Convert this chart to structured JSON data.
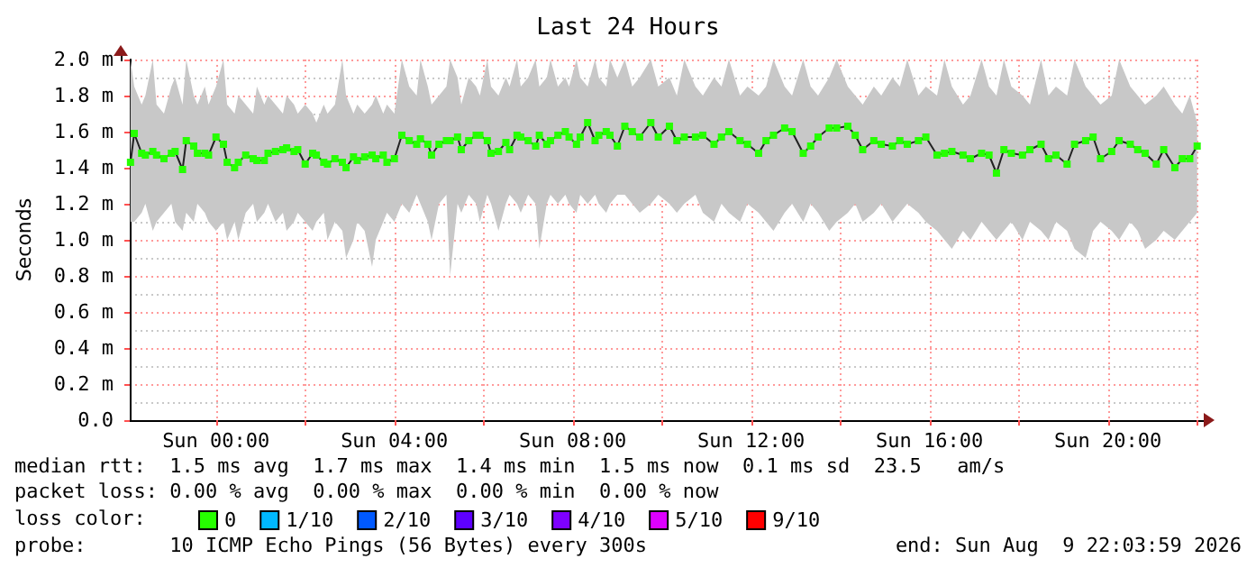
{
  "chart_data": {
    "type": "line",
    "title": "Last 24 Hours",
    "ylabel": "Seconds",
    "legend_title": "loss color:",
    "legend": "bottom left",
    "grid": true,
    "marker": "square",
    "line_style": "solid",
    "xlim": [
      "2026-08-08T22:04",
      "2026-08-09T22:04"
    ],
    "xticks": [
      {
        "value": "2026-08-09T00:00",
        "label": "Sun 00:00"
      },
      {
        "value": "2026-08-09T02:00",
        "label": null
      },
      {
        "value": "2026-08-09T04:00",
        "label": "Sun 04:00"
      },
      {
        "value": "2026-08-09T06:00",
        "label": null
      },
      {
        "value": "2026-08-09T08:00",
        "label": "Sun 08:00"
      },
      {
        "value": "2026-08-09T10:00",
        "label": null
      },
      {
        "value": "2026-08-09T12:00",
        "label": "Sun 12:00"
      },
      {
        "value": "2026-08-09T14:00",
        "label": null
      },
      {
        "value": "2026-08-09T16:00",
        "label": "Sun 16:00"
      },
      {
        "value": "2026-08-09T18:00",
        "label": null
      },
      {
        "value": "2026-08-09T20:00",
        "label": "Sun 20:00"
      },
      {
        "value": "2026-08-09T22:00",
        "label": null
      }
    ],
    "ylim": [
      0,
      2
    ],
    "yticks": [
      {
        "value": 0,
        "label": "0.0"
      },
      {
        "value": 0.2,
        "label": "0.2 m"
      },
      {
        "value": 0.4,
        "label": "0.4 m"
      },
      {
        "value": 0.6,
        "label": "0.6 m"
      },
      {
        "value": 0.8,
        "label": "0.8 m"
      },
      {
        "value": 1,
        "label": "1.0 m"
      },
      {
        "value": 1.2,
        "label": "1.2 m"
      },
      {
        "value": 1.4,
        "label": "1.4 m"
      },
      {
        "value": 1.6,
        "label": "1.6 m"
      },
      {
        "value": 1.8,
        "label": "1.8 m"
      },
      {
        "value": 2,
        "label": "2.0 m"
      }
    ],
    "annotations": [
      "median rtt:  1.5 ms avg  1.7 ms max  1.4 ms min  1.5 ms now  0.1 ms sd  23.5   am/s",
      "packet loss: 0.00 % avg  0.00 % max  0.00 % min  0.00 % now",
      "probe:       10 ICMP Echo Pings (56 Bytes) every 300s",
      "end: Sun Aug  9 22:03:59 2026"
    ],
    "series": [
      {
        "name": "0",
        "color": "#26ff00",
        "x": [
          "2026-08-08T22:05",
          "2026-08-08T22:10",
          "2026-08-08T22:20",
          "2026-08-08T22:25",
          "2026-08-08T22:35",
          "2026-08-08T22:40",
          "2026-08-08T22:50",
          "2026-08-08T23:00",
          "2026-08-08T23:05",
          "2026-08-08T23:15",
          "2026-08-08T23:20",
          "2026-08-08T23:30",
          "2026-08-08T23:35",
          "2026-08-08T23:45",
          "2026-08-08T23:50",
          "2026-08-09T00:00",
          "2026-08-09T00:10",
          "2026-08-09T00:15",
          "2026-08-09T00:25",
          "2026-08-09T00:30",
          "2026-08-09T00:40",
          "2026-08-09T00:50",
          "2026-08-09T00:55",
          "2026-08-09T01:05",
          "2026-08-09T01:10",
          "2026-08-09T01:20",
          "2026-08-09T01:30",
          "2026-08-09T01:35",
          "2026-08-09T01:45",
          "2026-08-09T01:50",
          "2026-08-09T02:00",
          "2026-08-09T02:10",
          "2026-08-09T02:15",
          "2026-08-09T02:25",
          "2026-08-09T02:30",
          "2026-08-09T02:40",
          "2026-08-09T02:50",
          "2026-08-09T02:55",
          "2026-08-09T03:05",
          "2026-08-09T03:10",
          "2026-08-09T03:20",
          "2026-08-09T03:30",
          "2026-08-09T03:35",
          "2026-08-09T03:45",
          "2026-08-09T03:50",
          "2026-08-09T04:00",
          "2026-08-09T04:10",
          "2026-08-09T04:20",
          "2026-08-09T04:30",
          "2026-08-09T04:35",
          "2026-08-09T04:45",
          "2026-08-09T04:50",
          "2026-08-09T05:00",
          "2026-08-09T05:10",
          "2026-08-09T05:15",
          "2026-08-09T05:25",
          "2026-08-09T05:30",
          "2026-08-09T05:40",
          "2026-08-09T05:50",
          "2026-08-09T05:55",
          "2026-08-09T06:05",
          "2026-08-09T06:10",
          "2026-08-09T06:20",
          "2026-08-09T06:30",
          "2026-08-09T06:35",
          "2026-08-09T06:45",
          "2026-08-09T06:50",
          "2026-08-09T07:00",
          "2026-08-09T07:10",
          "2026-08-09T07:15",
          "2026-08-09T07:25",
          "2026-08-09T07:30",
          "2026-08-09T07:40",
          "2026-08-09T07:50",
          "2026-08-09T07:55",
          "2026-08-09T08:05",
          "2026-08-09T08:10",
          "2026-08-09T08:20",
          "2026-08-09T08:30",
          "2026-08-09T08:35",
          "2026-08-09T08:45",
          "2026-08-09T08:50",
          "2026-08-09T09:00",
          "2026-08-09T09:10",
          "2026-08-09T09:20",
          "2026-08-09T09:30",
          "2026-08-09T09:45",
          "2026-08-09T09:55",
          "2026-08-09T10:10",
          "2026-08-09T10:20",
          "2026-08-09T10:30",
          "2026-08-09T10:45",
          "2026-08-09T10:55",
          "2026-08-09T11:10",
          "2026-08-09T11:20",
          "2026-08-09T11:30",
          "2026-08-09T11:45",
          "2026-08-09T11:55",
          "2026-08-09T12:10",
          "2026-08-09T12:20",
          "2026-08-09T12:30",
          "2026-08-09T12:45",
          "2026-08-09T12:55",
          "2026-08-09T13:10",
          "2026-08-09T13:20",
          "2026-08-09T13:30",
          "2026-08-09T13:45",
          "2026-08-09T13:55",
          "2026-08-09T14:10",
          "2026-08-09T14:20",
          "2026-08-09T14:30",
          "2026-08-09T14:45",
          "2026-08-09T14:55",
          "2026-08-09T15:10",
          "2026-08-09T15:20",
          "2026-08-09T15:30",
          "2026-08-09T15:45",
          "2026-08-09T15:55",
          "2026-08-09T16:10",
          "2026-08-09T16:20",
          "2026-08-09T16:30",
          "2026-08-09T16:45",
          "2026-08-09T16:55",
          "2026-08-09T17:10",
          "2026-08-09T17:20",
          "2026-08-09T17:30",
          "2026-08-09T17:40",
          "2026-08-09T17:50",
          "2026-08-09T18:05",
          "2026-08-09T18:15",
          "2026-08-09T18:30",
          "2026-08-09T18:40",
          "2026-08-09T18:50",
          "2026-08-09T19:05",
          "2026-08-09T19:15",
          "2026-08-09T19:30",
          "2026-08-09T19:40",
          "2026-08-09T19:50",
          "2026-08-09T20:05",
          "2026-08-09T20:15",
          "2026-08-09T20:30",
          "2026-08-09T20:40",
          "2026-08-09T20:50",
          "2026-08-09T21:05",
          "2026-08-09T21:15",
          "2026-08-09T21:30",
          "2026-08-09T21:40",
          "2026-08-09T21:50",
          "2026-08-09T22:00"
        ],
        "values": [
          1.43,
          1.59,
          1.48,
          1.47,
          1.49,
          1.47,
          1.45,
          1.48,
          1.49,
          1.39,
          1.55,
          1.52,
          1.48,
          1.48,
          1.47,
          1.57,
          1.53,
          1.43,
          1.4,
          1.43,
          1.47,
          1.45,
          1.44,
          1.44,
          1.48,
          1.49,
          1.5,
          1.51,
          1.49,
          1.5,
          1.42,
          1.48,
          1.47,
          1.43,
          1.42,
          1.45,
          1.43,
          1.4,
          1.46,
          1.44,
          1.46,
          1.47,
          1.45,
          1.47,
          1.43,
          1.45,
          1.58,
          1.55,
          1.53,
          1.56,
          1.53,
          1.47,
          1.53,
          1.55,
          1.55,
          1.57,
          1.5,
          1.55,
          1.58,
          1.58,
          1.55,
          1.48,
          1.49,
          1.54,
          1.5,
          1.58,
          1.57,
          1.55,
          1.52,
          1.58,
          1.53,
          1.55,
          1.58,
          1.6,
          1.57,
          1.53,
          1.57,
          1.65,
          1.55,
          1.58,
          1.6,
          1.58,
          1.52,
          1.63,
          1.6,
          1.57,
          1.65,
          1.57,
          1.63,
          1.55,
          1.57,
          1.57,
          1.58,
          1.53,
          1.57,
          1.6,
          1.55,
          1.53,
          1.48,
          1.55,
          1.58,
          1.62,
          1.6,
          1.48,
          1.52,
          1.57,
          1.62,
          1.62,
          1.63,
          1.58,
          1.5,
          1.55,
          1.53,
          1.52,
          1.55,
          1.53,
          1.55,
          1.57,
          1.47,
          1.48,
          1.49,
          1.47,
          1.45,
          1.48,
          1.47,
          1.37,
          1.5,
          1.48,
          1.47,
          1.5,
          1.53,
          1.45,
          1.47,
          1.42,
          1.53,
          1.55,
          1.57,
          1.45,
          1.49,
          1.55,
          1.53,
          1.5,
          1.48,
          1.42,
          1.5,
          1.4,
          1.45,
          1.45,
          1.52
        ],
        "lower": [
          1.1,
          1.1,
          1.15,
          1.2,
          1.05,
          1.1,
          1.15,
          1.2,
          1.1,
          1.05,
          1.15,
          1.1,
          1.2,
          1.15,
          1.1,
          1.05,
          1.1,
          1,
          1.1,
          1,
          1.15,
          1.2,
          1.1,
          1.15,
          1.2,
          1.1,
          1.15,
          1.05,
          1.1,
          1.15,
          1.1,
          1.05,
          1.1,
          1.15,
          1,
          1.1,
          1.05,
          0.9,
          1,
          1.1,
          1.05,
          0.85,
          1,
          1.1,
          1.15,
          1.1,
          1.2,
          1.15,
          1.25,
          1.2,
          1.1,
          1,
          1.2,
          1.25,
          0.8,
          1.2,
          1.15,
          1.25,
          1.2,
          1.1,
          1.25,
          1.2,
          1.05,
          1.2,
          1.25,
          1.2,
          1.15,
          1.25,
          1.2,
          0.95,
          1.2,
          1.25,
          1.2,
          1.25,
          1.2,
          1.15,
          1.25,
          1.2,
          1.25,
          1.2,
          1.15,
          1.2,
          1.25,
          1.25,
          1.2,
          1.15,
          1.2,
          1.25,
          1.2,
          1.15,
          1.2,
          1.25,
          1.15,
          1.1,
          1.2,
          1.15,
          1.1,
          1.2,
          1.15,
          1.1,
          1.05,
          1.15,
          1.2,
          1.1,
          1.2,
          1.15,
          1.05,
          1.1,
          1.15,
          1.2,
          1.1,
          1.15,
          1.2,
          1.1,
          1.15,
          1.2,
          1.15,
          1.1,
          1.05,
          1,
          0.95,
          1.05,
          1,
          1.1,
          1.05,
          1,
          1.05,
          1.1,
          1,
          1.1,
          1.05,
          1,
          1.1,
          1.05,
          0.95,
          0.9,
          1.05,
          1.1,
          1.05,
          1,
          1.1,
          1.05,
          0.95,
          1,
          1.05,
          1,
          1.05,
          1.1,
          1.15
        ],
        "upper": [
          2,
          1.85,
          1.75,
          1.8,
          2,
          1.75,
          1.7,
          1.85,
          1.9,
          1.75,
          2,
          1.8,
          1.75,
          1.85,
          1.75,
          1.85,
          2,
          1.75,
          1.7,
          1.8,
          1.75,
          1.7,
          1.85,
          1.75,
          1.8,
          1.75,
          1.7,
          1.8,
          1.75,
          1.7,
          1.75,
          1.7,
          1.65,
          1.75,
          1.7,
          1.75,
          2,
          1.8,
          1.7,
          1.75,
          1.7,
          1.75,
          1.8,
          1.7,
          1.75,
          1.7,
          2,
          1.85,
          1.8,
          2,
          1.85,
          1.75,
          1.8,
          1.85,
          2,
          1.9,
          1.75,
          1.9,
          1.85,
          1.8,
          2,
          1.85,
          1.8,
          1.9,
          1.85,
          2,
          1.85,
          1.9,
          2,
          1.85,
          1.9,
          2,
          1.85,
          1.9,
          1.85,
          2,
          1.9,
          1.85,
          2,
          1.9,
          1.85,
          2,
          1.9,
          2,
          1.85,
          1.9,
          2,
          1.85,
          1.9,
          1.8,
          2,
          1.85,
          1.8,
          1.9,
          1.85,
          2,
          1.8,
          1.85,
          1.8,
          1.85,
          2,
          1.85,
          1.8,
          2,
          1.85,
          1.8,
          1.9,
          2,
          1.85,
          1.8,
          1.75,
          1.85,
          1.8,
          1.9,
          1.85,
          2,
          1.8,
          1.85,
          1.8,
          2,
          1.85,
          1.75,
          1.8,
          2,
          1.85,
          1.8,
          2,
          1.85,
          1.8,
          1.75,
          2,
          1.8,
          1.85,
          1.8,
          2,
          1.85,
          1.8,
          1.75,
          1.8,
          2,
          1.85,
          1.8,
          1.75,
          1.8,
          1.85,
          1.75,
          1.7,
          1.8,
          1.65
        ]
      },
      {
        "name": "1/10",
        "color": "#00b8ff"
      },
      {
        "name": "2/10",
        "color": "#0059ff"
      },
      {
        "name": "3/10",
        "color": "#5e00ff"
      },
      {
        "name": "4/10",
        "color": "#7e00ff"
      },
      {
        "name": "5/10",
        "color": "#dd00ff"
      },
      {
        "name": "9/10",
        "color": "#ff0000"
      }
    ]
  }
}
